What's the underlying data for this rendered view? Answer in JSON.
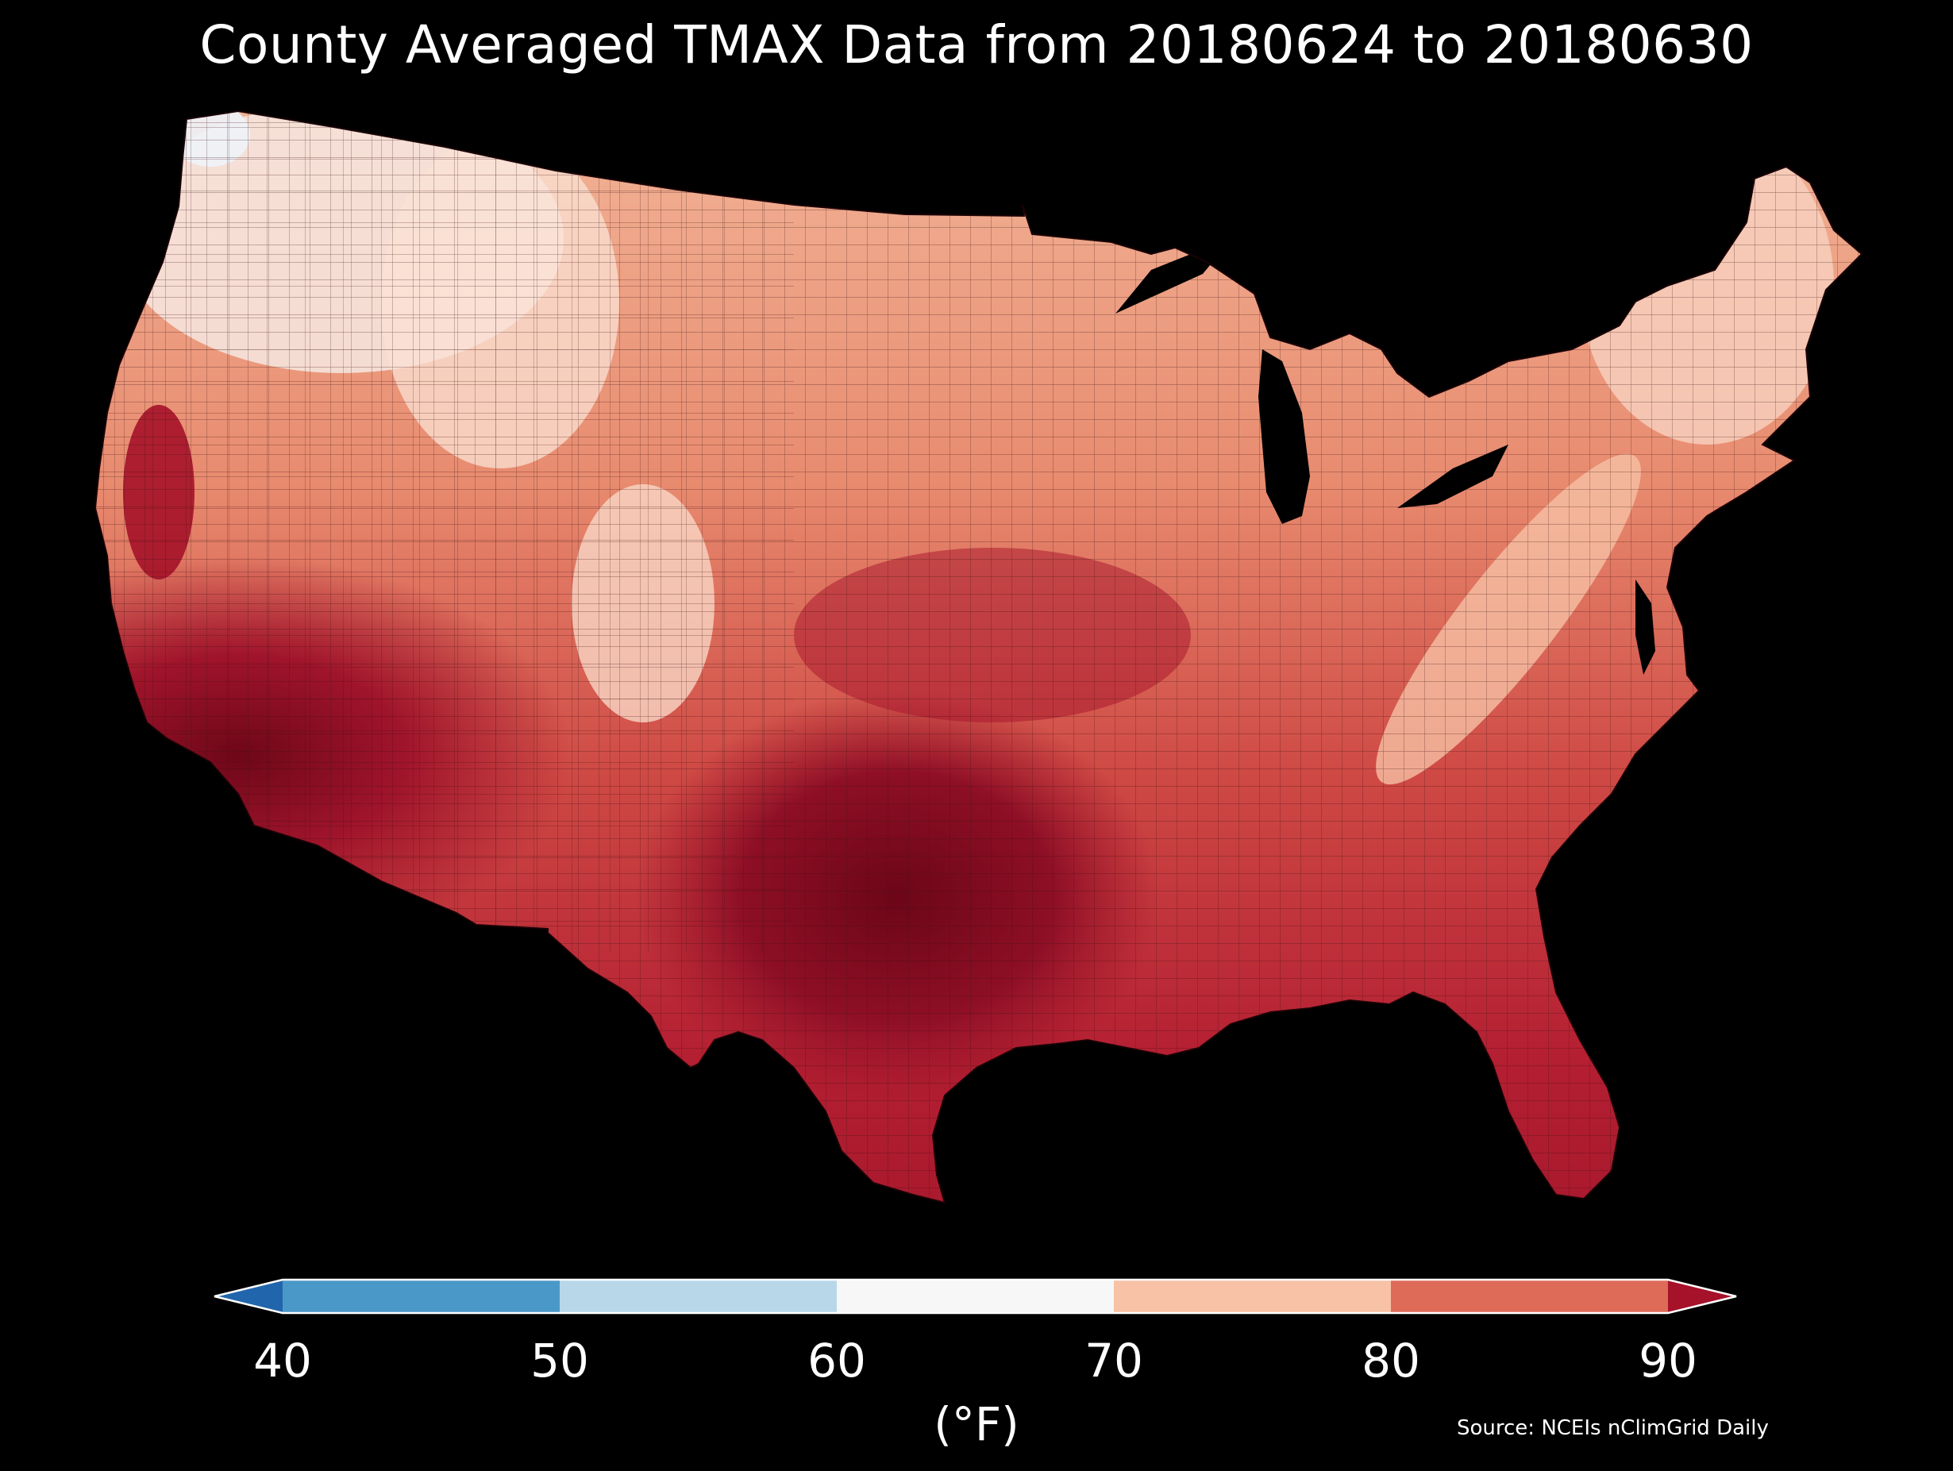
{
  "title": "County Averaged TMAX Data from 20180624 to 20180630",
  "source": "Source: NCEIs nClimGrid Daily",
  "colorbar": {
    "unit": "(°F)",
    "ticks": [
      "40",
      "50",
      "60",
      "70",
      "80",
      "90"
    ],
    "bins": [
      {
        "range": "<40",
        "color": "#2166ac"
      },
      {
        "range": "40-50",
        "color": "#4a98c8"
      },
      {
        "range": "50-60",
        "color": "#b8d8ea"
      },
      {
        "range": "60-70",
        "color": "#f7f7f7"
      },
      {
        "range": "70-80",
        "color": "#f8c2a6"
      },
      {
        "range": "80-90",
        "color": "#de6a58"
      },
      {
        "range": ">90",
        "color": "#a51229"
      }
    ],
    "extend": "both"
  },
  "map": {
    "region": "Contiguous United States",
    "unit_level": "county",
    "variable": "TMAX",
    "colors": {
      "background": "#000000",
      "water": "#000000",
      "county_border": "#3a1010"
    }
  }
}
